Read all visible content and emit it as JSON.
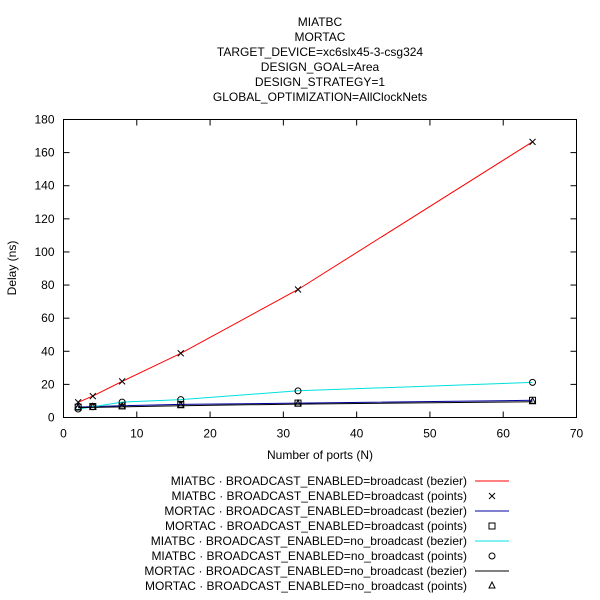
{
  "chart_data": {
    "type": "line",
    "title_lines": [
      "MIATBC",
      "MORTAC",
      "TARGET_DEVICE=xc6slx45-3-csg324",
      "DESIGN_GOAL=Area",
      "DESIGN_STRATEGY=1",
      "GLOBAL_OPTIMIZATION=AllClockNets"
    ],
    "xlabel": "Number of ports (N)",
    "ylabel": "Delay (ns)",
    "xlim": [
      0,
      70
    ],
    "ylim": [
      0,
      180
    ],
    "xticks": [
      0,
      10,
      20,
      30,
      40,
      50,
      60,
      70
    ],
    "yticks": [
      0,
      20,
      40,
      60,
      80,
      100,
      120,
      140,
      160,
      180
    ],
    "grid": false,
    "legend_position": "bottom",
    "series": [
      {
        "name": "MIATBC ·  BROADCAST_ENABLED=broadcast (bezier)",
        "kind": "line",
        "color": "#ff0000",
        "x": [
          2,
          4,
          8,
          16,
          32,
          64
        ],
        "y": [
          9.2,
          12.9,
          21.8,
          38.8,
          77.3,
          166.5
        ]
      },
      {
        "name": "MIATBC ·  BROADCAST_ENABLED=broadcast (points)",
        "kind": "points",
        "marker": "cross",
        "color": "#000000",
        "x": [
          2,
          4,
          8,
          16,
          32,
          64
        ],
        "y": [
          9.2,
          12.9,
          21.8,
          38.8,
          77.3,
          166.5
        ]
      },
      {
        "name": "MORTAC ·  BROADCAST_ENABLED=broadcast (bezier)",
        "kind": "line",
        "color": "#0000a0",
        "x": [
          2,
          4,
          8,
          16,
          32,
          64
        ],
        "y": [
          6.3,
          6.6,
          7.1,
          7.9,
          8.7,
          10.4
        ]
      },
      {
        "name": "MORTAC ·  BROADCAST_ENABLED=broadcast (points)",
        "kind": "points",
        "marker": "square",
        "color": "#000000",
        "x": [
          2,
          4,
          8,
          16,
          32,
          64
        ],
        "y": [
          6.3,
          6.6,
          7.1,
          7.9,
          8.7,
          10.4
        ]
      },
      {
        "name": "MIATBC ·  BROADCAST_ENABLED=no_broadcast (bezier)",
        "kind": "line",
        "color": "#00e0e0",
        "x": [
          2,
          4,
          8,
          16,
          32,
          64
        ],
        "y": [
          5.1,
          6.5,
          9.3,
          10.8,
          16.1,
          21.2
        ]
      },
      {
        "name": "MIATBC ·  BROADCAST_ENABLED=no_broadcast (points)",
        "kind": "points",
        "marker": "circle",
        "color": "#000000",
        "x": [
          2,
          4,
          8,
          16,
          32,
          64
        ],
        "y": [
          5.1,
          6.5,
          9.3,
          10.8,
          16.1,
          21.2
        ]
      },
      {
        "name": "MORTAC ·  BROADCAST_ENABLED=no_broadcast (bezier)",
        "kind": "line",
        "color": "#000000",
        "x": [
          2,
          4,
          8,
          16,
          32,
          64
        ],
        "y": [
          6.0,
          6.1,
          6.4,
          7.1,
          8.1,
          9.5
        ]
      },
      {
        "name": "MORTAC ·  BROADCAST_ENABLED=no_broadcast (points)",
        "kind": "points",
        "marker": "triangle",
        "color": "#000000",
        "x": [
          2,
          4,
          8,
          16,
          32,
          64
        ],
        "y": [
          6.0,
          6.1,
          6.4,
          7.1,
          8.1,
          9.5
        ]
      }
    ]
  }
}
